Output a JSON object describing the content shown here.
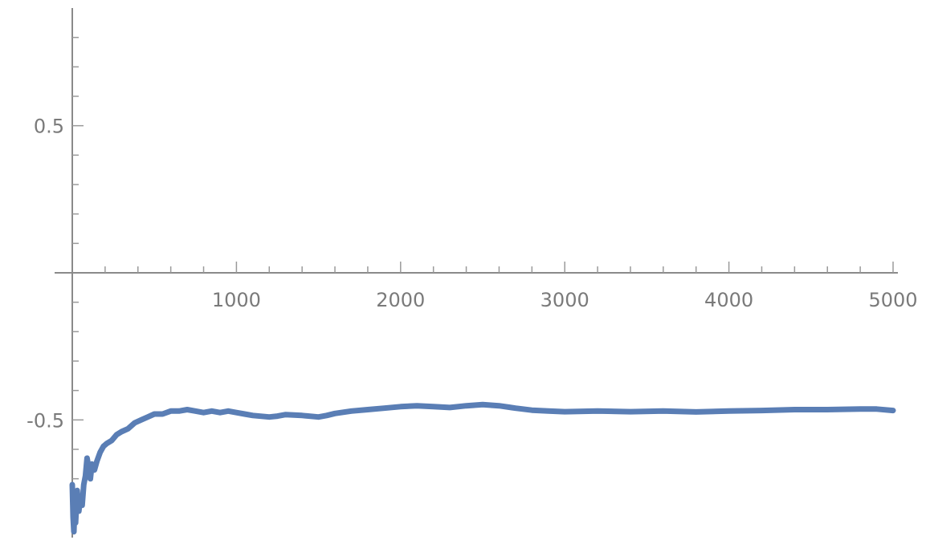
{
  "chart_data": {
    "type": "line",
    "title": "",
    "xlabel": "",
    "ylabel": "",
    "xlim": [
      0,
      5000
    ],
    "ylim": [
      -0.9,
      0.9
    ],
    "x_ticks": [
      {
        "value": 1000,
        "label": "1000"
      },
      {
        "value": 2000,
        "label": "2000"
      },
      {
        "value": 3000,
        "label": "3000"
      },
      {
        "value": 4000,
        "label": "4000"
      },
      {
        "value": 5000,
        "label": "5000"
      }
    ],
    "y_ticks": [
      {
        "value": 0.5,
        "label": "0.5"
      },
      {
        "value": -0.5,
        "label": "-0.5"
      }
    ],
    "grid": false,
    "legend": "none",
    "colors": {
      "series": "#5a7eb5",
      "axis": "#8a8a8a",
      "label": "#7a7a7a"
    },
    "series": [
      {
        "points": [
          [
            0,
            -0.72
          ],
          [
            5,
            -0.83
          ],
          [
            10,
            -0.88
          ],
          [
            15,
            -0.79
          ],
          [
            20,
            -0.85
          ],
          [
            30,
            -0.74
          ],
          [
            40,
            -0.81
          ],
          [
            50,
            -0.76
          ],
          [
            60,
            -0.79
          ],
          [
            70,
            -0.72
          ],
          [
            80,
            -0.69
          ],
          [
            90,
            -0.63
          ],
          [
            100,
            -0.66
          ],
          [
            110,
            -0.7
          ],
          [
            120,
            -0.65
          ],
          [
            135,
            -0.67
          ],
          [
            150,
            -0.64
          ],
          [
            170,
            -0.61
          ],
          [
            190,
            -0.59
          ],
          [
            210,
            -0.58
          ],
          [
            240,
            -0.57
          ],
          [
            270,
            -0.55
          ],
          [
            300,
            -0.54
          ],
          [
            340,
            -0.53
          ],
          [
            380,
            -0.51
          ],
          [
            420,
            -0.5
          ],
          [
            460,
            -0.49
          ],
          [
            500,
            -0.48
          ],
          [
            550,
            -0.48
          ],
          [
            600,
            -0.47
          ],
          [
            650,
            -0.47
          ],
          [
            700,
            -0.465
          ],
          [
            750,
            -0.47
          ],
          [
            800,
            -0.475
          ],
          [
            850,
            -0.47
          ],
          [
            900,
            -0.475
          ],
          [
            950,
            -0.47
          ],
          [
            1000,
            -0.475
          ],
          [
            1050,
            -0.48
          ],
          [
            1100,
            -0.485
          ],
          [
            1200,
            -0.49
          ],
          [
            1250,
            -0.487
          ],
          [
            1300,
            -0.482
          ],
          [
            1400,
            -0.485
          ],
          [
            1500,
            -0.49
          ],
          [
            1550,
            -0.485
          ],
          [
            1600,
            -0.478
          ],
          [
            1700,
            -0.47
          ],
          [
            1800,
            -0.465
          ],
          [
            1900,
            -0.46
          ],
          [
            2000,
            -0.455
          ],
          [
            2100,
            -0.452
          ],
          [
            2200,
            -0.455
          ],
          [
            2300,
            -0.458
          ],
          [
            2400,
            -0.452
          ],
          [
            2500,
            -0.448
          ],
          [
            2600,
            -0.452
          ],
          [
            2700,
            -0.46
          ],
          [
            2800,
            -0.467
          ],
          [
            2900,
            -0.47
          ],
          [
            3000,
            -0.472
          ],
          [
            3200,
            -0.47
          ],
          [
            3400,
            -0.472
          ],
          [
            3600,
            -0.47
          ],
          [
            3800,
            -0.473
          ],
          [
            4000,
            -0.47
          ],
          [
            4200,
            -0.468
          ],
          [
            4400,
            -0.465
          ],
          [
            4600,
            -0.465
          ],
          [
            4800,
            -0.463
          ],
          [
            4900,
            -0.463
          ],
          [
            5000,
            -0.468
          ]
        ]
      }
    ]
  }
}
